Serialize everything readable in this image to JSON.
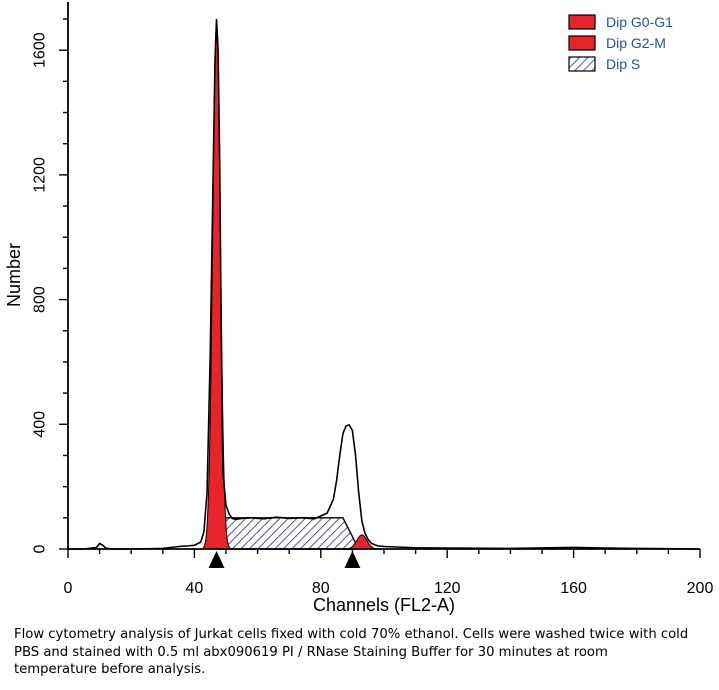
{
  "chart_data": {
    "type": "area",
    "xlabel": "Channels (FL2-A)",
    "ylabel": "Number",
    "xlim": [
      0,
      200
    ],
    "ylim": [
      0,
      1700
    ],
    "xticks": [
      0,
      40,
      80,
      120,
      160,
      200
    ],
    "yticks": [
      0,
      400,
      800,
      1200,
      1600
    ],
    "grid": false,
    "legend_position": "top-right",
    "series": [
      {
        "name": "Dip G0-G1",
        "fill": "#e8242a",
        "style": "solid",
        "mean_channel": 47,
        "peak": 1680,
        "sd": 1.2
      },
      {
        "name": "Dip G2-M",
        "fill": "#e8242a",
        "style": "solid",
        "mean_channel": 93,
        "peak": 45,
        "sd": 1.6
      },
      {
        "name": "Dip S",
        "fill": "#2b2f7a",
        "style": "hatched",
        "x_start": 49,
        "x_end": 92,
        "plateau": 100
      }
    ],
    "histogram": {
      "x": [
        0,
        5,
        9,
        10,
        11,
        12,
        14,
        20,
        30,
        35,
        38,
        40,
        42,
        43,
        44,
        45,
        46,
        46.5,
        47,
        47.5,
        48,
        48.5,
        49,
        50,
        51,
        52,
        53,
        55,
        58,
        62,
        66,
        70,
        74,
        78,
        82,
        84,
        85,
        86,
        87,
        88,
        89,
        90,
        91,
        92,
        93,
        94,
        95,
        96,
        98,
        100,
        105,
        110,
        120,
        140,
        160,
        170,
        180,
        190,
        200
      ],
      "y": [
        0,
        0,
        5,
        18,
        12,
        3,
        0,
        0,
        2,
        8,
        10,
        12,
        22,
        55,
        180,
        620,
        1250,
        1560,
        1700,
        1600,
        1250,
        700,
        250,
        140,
        112,
        98,
        95,
        98,
        100,
        97,
        102,
        98,
        100,
        97,
        115,
        160,
        220,
        300,
        370,
        395,
        398,
        380,
        300,
        180,
        90,
        50,
        30,
        18,
        10,
        8,
        6,
        4,
        3,
        2,
        5,
        3,
        2,
        1,
        0
      ]
    },
    "markers": [
      47,
      90
    ]
  },
  "caption": "Flow cytometry analysis of Jurkat cells fixed with cold 70% ethanol. Cells were washed twice with cold PBS and stained with 0.5 ml abx090619 PI / RNase Staining Buffer for 30 minutes at room temperature before analysis."
}
